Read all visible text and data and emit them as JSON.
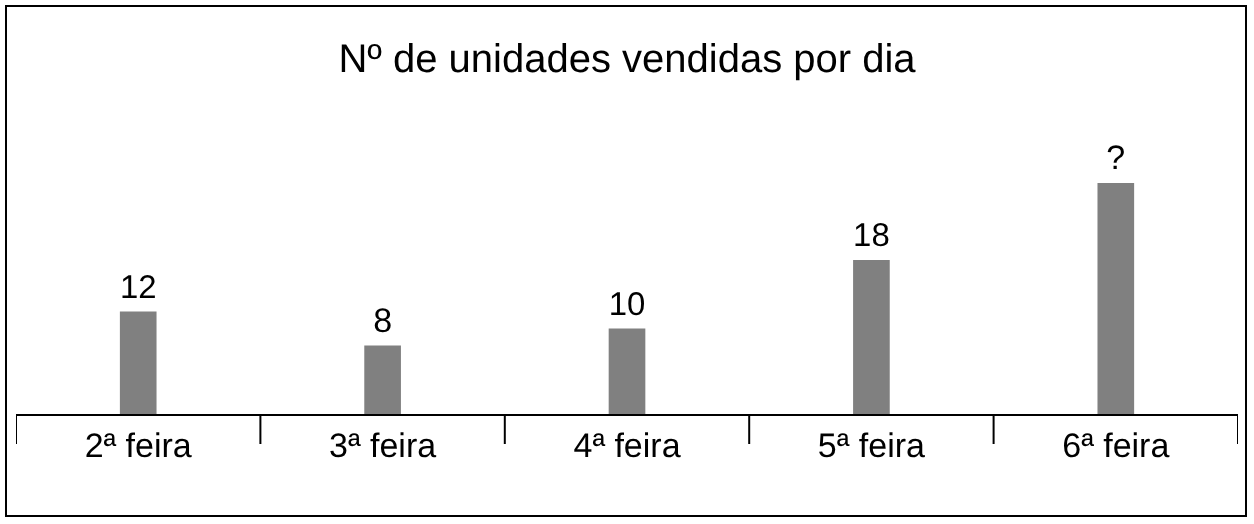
{
  "chart_data": {
    "type": "bar",
    "title": "Nº de unidades vendidas por dia",
    "categories": [
      "2ª feira",
      "3ª feira",
      "4ª feira",
      "5ª feira",
      "6ª feira"
    ],
    "values": [
      12,
      8,
      10,
      18,
      27
    ],
    "value_labels": [
      "12",
      "8",
      "10",
      "18",
      "?"
    ],
    "color": "#808080"
  }
}
